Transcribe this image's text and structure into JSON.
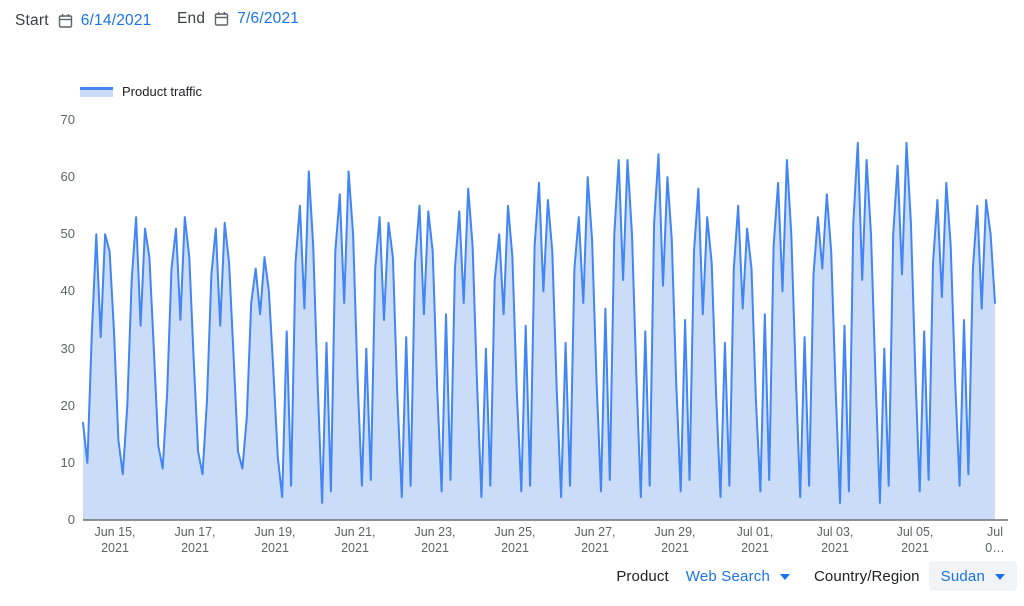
{
  "header": {
    "start_label": "Start",
    "start_date": "6/14/2021",
    "end_label": "End",
    "end_date": "7/6/2021"
  },
  "legend": {
    "label": "Product traffic"
  },
  "chart_data": {
    "type": "area",
    "title": "Product traffic",
    "xlabel": "",
    "ylabel": "",
    "ylim": [
      0,
      70
    ],
    "grid": false,
    "legend_position": "top-left",
    "colors": {
      "line": "#4285f4",
      "fill": "#cbdcf9",
      "axis": "#6b6f73",
      "tick_text": "#5f6368",
      "accent_link": "#1a73e8"
    },
    "y_ticks": [
      0,
      10,
      20,
      30,
      40,
      50,
      60,
      70
    ],
    "x_ticks": [
      {
        "day": 1,
        "line1": "Jun 15,",
        "line2": "2021"
      },
      {
        "day": 3,
        "line1": "Jun 17,",
        "line2": "2021"
      },
      {
        "day": 5,
        "line1": "Jun 19,",
        "line2": "2021"
      },
      {
        "day": 7,
        "line1": "Jun 21,",
        "line2": "2021"
      },
      {
        "day": 9,
        "line1": "Jun 23,",
        "line2": "2021"
      },
      {
        "day": 11,
        "line1": "Jun 25,",
        "line2": "2021"
      },
      {
        "day": 13,
        "line1": "Jun 27,",
        "line2": "2021"
      },
      {
        "day": 15,
        "line1": "Jun 29,",
        "line2": "2021"
      },
      {
        "day": 17,
        "line1": "Jul 01,",
        "line2": "2021"
      },
      {
        "day": 19,
        "line1": "Jul 03,",
        "line2": "2021"
      },
      {
        "day": 21,
        "line1": "Jul 05,",
        "line2": "2021"
      },
      {
        "day": 23,
        "line1": "Jul",
        "line2": "0…"
      }
    ],
    "x_range_days": 23,
    "series": [
      {
        "name": "Product traffic",
        "note": "sub-daily traffic index, 9 points per day, Jun 14 2021 through Jul 6 2021",
        "values": [
          17,
          10,
          33,
          50,
          32,
          50,
          47,
          33,
          14,
          8,
          20,
          42,
          53,
          34,
          51,
          46,
          30,
          13,
          9,
          22,
          44,
          51,
          35,
          53,
          46,
          28,
          12,
          8,
          21,
          43,
          51,
          34,
          52,
          45,
          29,
          12,
          9,
          18,
          38,
          44,
          36,
          46,
          40,
          26,
          11,
          4,
          33,
          6,
          45,
          55,
          37,
          61,
          48,
          24,
          3,
          31,
          5,
          47,
          57,
          38,
          61,
          50,
          25,
          6,
          30,
          7,
          44,
          53,
          35,
          52,
          46,
          22,
          4,
          32,
          6,
          45,
          55,
          36,
          54,
          47,
          23,
          5,
          36,
          7,
          44,
          54,
          38,
          58,
          48,
          24,
          4,
          30,
          6,
          42,
          50,
          36,
          55,
          46,
          22,
          5,
          34,
          6,
          48,
          59,
          40,
          56,
          47,
          23,
          4,
          31,
          6,
          44,
          53,
          38,
          60,
          49,
          24,
          5,
          37,
          7,
          50,
          63,
          42,
          63,
          50,
          25,
          4,
          33,
          6,
          52,
          64,
          41,
          60,
          49,
          24,
          5,
          35,
          7,
          47,
          58,
          36,
          53,
          45,
          22,
          4,
          31,
          6,
          44,
          55,
          37,
          51,
          44,
          21,
          5,
          36,
          7,
          48,
          59,
          40,
          63,
          50,
          25,
          4,
          32,
          6,
          43,
          53,
          44,
          57,
          47,
          23,
          3,
          34,
          5,
          52,
          66,
          42,
          63,
          50,
          25,
          3,
          30,
          6,
          50,
          62,
          43,
          66,
          52,
          26,
          5,
          33,
          7,
          45,
          56,
          39,
          59,
          48,
          24,
          6,
          35,
          8,
          44,
          55,
          37,
          56,
          50,
          38
        ]
      }
    ]
  },
  "footer": {
    "product_label": "Product",
    "product_value": "Web Search",
    "country_label": "Country/Region",
    "country_value": "Sudan"
  }
}
